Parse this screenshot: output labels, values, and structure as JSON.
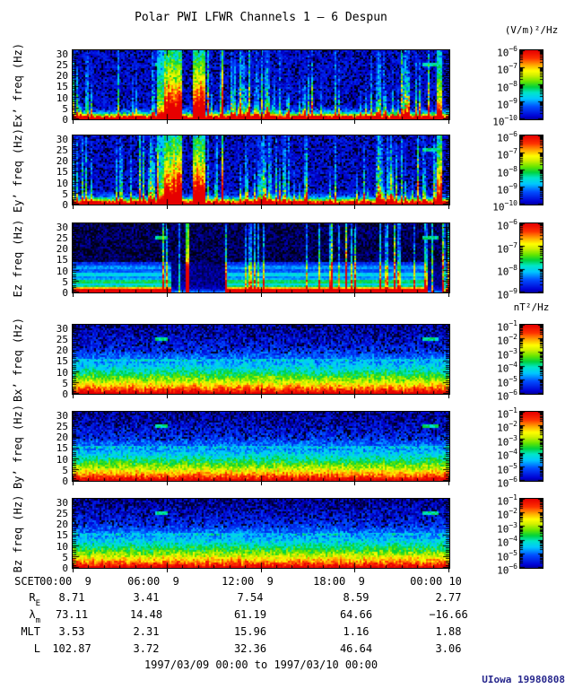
{
  "chart_data": {
    "type": "heatmap",
    "title": "Polar PWI LFWR Channels 1 — 6 Despun",
    "y_axis": {
      "unit": "Hz",
      "range": [
        0,
        31.5
      ],
      "ticks": [
        0,
        5,
        10,
        15,
        20,
        25,
        30
      ],
      "minor_step": 1
    },
    "x_axis": {
      "label": "SCET",
      "major_hours": [
        0,
        6,
        12,
        18,
        24
      ],
      "minor_step_hours": 1,
      "tick_labels": [
        "00:00  9",
        "06:00  9",
        "12:00  9",
        "18:00  9",
        "00:00 10"
      ]
    },
    "colormap": [
      [
        0.0,
        "#000000"
      ],
      [
        0.07,
        "#000050"
      ],
      [
        0.15,
        "#0000d2"
      ],
      [
        0.28,
        "#0050ff"
      ],
      [
        0.38,
        "#00c8ff"
      ],
      [
        0.46,
        "#00e6c8"
      ],
      [
        0.53,
        "#00d23c"
      ],
      [
        0.6,
        "#64e600"
      ],
      [
        0.68,
        "#d2f000"
      ],
      [
        0.74,
        "#ffff00"
      ],
      [
        0.82,
        "#ffa000"
      ],
      [
        0.9,
        "#ff3200"
      ],
      [
        1.0,
        "#e60000"
      ]
    ],
    "panels": [
      {
        "id": "ex",
        "ylabel": "Ex’ freq (Hz)",
        "kind": "electric",
        "seed": 101,
        "colorbar": {
          "unit": "(V/m)²/Hz",
          "base": "10",
          "exponents": [
            -6,
            -7,
            -8,
            -9,
            -10
          ]
        }
      },
      {
        "id": "ey",
        "ylabel": "Ey’ freq (Hz)",
        "kind": "electric",
        "seed": 202,
        "colorbar": {
          "base": "10",
          "exponents": [
            -6,
            -7,
            -8,
            -9,
            -10
          ]
        }
      },
      {
        "id": "ez",
        "ylabel": "Ez freq (Hz)",
        "kind": "electric-z",
        "seed": 303,
        "colorbar": {
          "base": "10",
          "exponents": [
            -6,
            -7,
            -8,
            -9
          ]
        }
      },
      {
        "id": "bx",
        "ylabel": "Bx’ freq (Hz)",
        "kind": "magnetic",
        "seed": 404,
        "colorbar": {
          "unit": "nT²/Hz",
          "base": "10",
          "exponents": [
            -1,
            -2,
            -3,
            -4,
            -5,
            -6
          ]
        }
      },
      {
        "id": "by",
        "ylabel": "By’ freq (Hz)",
        "kind": "magnetic",
        "seed": 505,
        "colorbar": {
          "base": "10",
          "exponents": [
            -1,
            -2,
            -3,
            -4,
            -5,
            -6
          ]
        }
      },
      {
        "id": "bz",
        "ylabel": "Bz freq (Hz)",
        "kind": "magnetic",
        "seed": 606,
        "colorbar": {
          "base": "10",
          "exponents": [
            -1,
            -2,
            -3,
            -4,
            -5,
            -6
          ]
        }
      }
    ],
    "features": {
      "electric": {
        "events": [
          [
            0.222,
            0.243,
            0.5
          ],
          [
            0.243,
            0.29,
            1.0
          ],
          [
            0.318,
            0.35,
            1.0
          ],
          [
            0.395,
            0.4,
            1.0
          ],
          [
            0.97,
            0.985,
            0.8
          ]
        ],
        "clusters": [
          [
            0.0,
            0.05,
            0.3
          ],
          [
            0.09,
            0.22,
            0.38
          ],
          [
            0.35,
            0.4,
            0.2
          ],
          [
            0.42,
            0.53,
            0.5
          ],
          [
            0.53,
            0.64,
            0.35
          ],
          [
            0.68,
            0.8,
            0.22
          ],
          [
            0.8,
            0.935,
            0.5
          ]
        ],
        "base_streak_density": 0.1
      },
      "electric_z": {
        "band_top_hz": 13.5,
        "gaps": [
          [
            0.262,
            0.298
          ],
          [
            0.306,
            0.405
          ],
          [
            0.945,
            0.995
          ]
        ],
        "burst": [
          0.297,
          0.307,
          1.0
        ],
        "line_clusters": [
          [
            0.404,
            0.41,
            0.95
          ],
          [
            0.455,
            0.52,
            0.25
          ],
          [
            0.73,
            0.77,
            0.3
          ],
          [
            0.79,
            0.84,
            0.45
          ],
          [
            0.855,
            0.88,
            0.45
          ],
          [
            0.935,
            0.944,
            0.9
          ],
          [
            0.995,
            1.0,
            0.9
          ]
        ]
      },
      "magnetic": {
        "faint_line_hz": 15.2
      },
      "interference_dashes": {
        "freq_hz": 25.2,
        "ranges": [
          [
            0.217,
            0.252
          ],
          [
            0.93,
            0.975
          ]
        ]
      }
    }
  },
  "table": {
    "rows": [
      {
        "label": "SCET",
        "sub": "",
        "values": [
          "00:00  9",
          "06:00  9",
          "12:00  9",
          "18:00  9",
          "00:00 10"
        ]
      },
      {
        "label": "R",
        "sub": "E",
        "values": [
          "8.71",
          "3.41",
          "7.54",
          "8.59",
          "2.77"
        ]
      },
      {
        "label": "λ",
        "sub": "m",
        "values": [
          "73.11",
          "14.48",
          "61.19",
          "64.66",
          "−16.66"
        ]
      },
      {
        "label": "MLT",
        "sub": "",
        "values": [
          "3.53",
          "2.31",
          "15.96",
          "1.16",
          "1.88"
        ]
      },
      {
        "label": "L",
        "sub": "",
        "values": [
          "102.87",
          "3.72",
          "32.36",
          "46.64",
          "3.06"
        ]
      }
    ],
    "footer": "1997/03/09 00:00 to 1997/03/10 00:00"
  },
  "credit": "UIowa 19980808"
}
